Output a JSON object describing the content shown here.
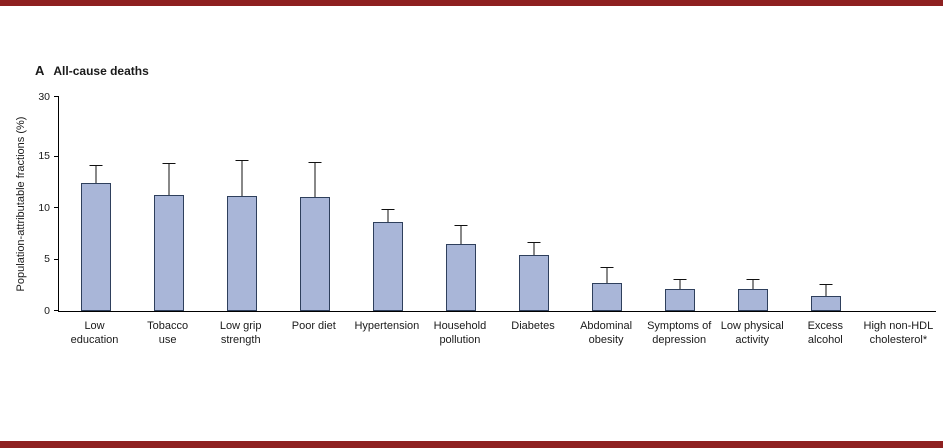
{
  "chart_data": {
    "type": "bar",
    "panel_label": "A",
    "panel_title": "All-cause deaths",
    "title": "A All-cause deaths",
    "xlabel": "",
    "ylabel": "Population-attributable fractions (%)",
    "categories": [
      [
        "Low",
        "education"
      ],
      [
        "Tobacco",
        "use"
      ],
      [
        "Low grip",
        "strength"
      ],
      [
        "Poor diet"
      ],
      [
        "Hypertension"
      ],
      [
        "Household",
        "pollution"
      ],
      [
        "Diabetes"
      ],
      [
        "Abdominal",
        "obesity"
      ],
      [
        "Symptoms of",
        "depression"
      ],
      [
        "Low physical",
        "activity"
      ],
      [
        "Excess",
        "alcohol"
      ],
      [
        "High non-HDL",
        "cholesterol*"
      ]
    ],
    "values": [
      12.4,
      11.3,
      11.2,
      11.1,
      8.7,
      6.5,
      5.4,
      2.7,
      2.1,
      2.1,
      1.5,
      0
    ],
    "error_high": [
      14.2,
      14.4,
      14.7,
      14.5,
      9.9,
      8.4,
      6.7,
      4.3,
      3.1,
      3.1,
      2.6,
      0
    ],
    "yticks": [
      0,
      5,
      10,
      15
    ],
    "ytick_top_label": "30",
    "ylim": [
      0,
      20.8
    ],
    "grid": false,
    "legend": "none",
    "colors": {
      "rule": "#8e2020",
      "bar_fill": "#a9b6d8",
      "bar_border": "#2e3f5c",
      "axis": "#000000"
    }
  }
}
